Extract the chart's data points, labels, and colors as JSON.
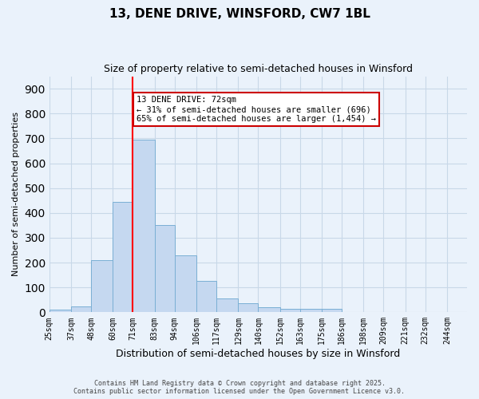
{
  "title": "13, DENE DRIVE, WINSFORD, CW7 1BL",
  "subtitle": "Size of property relative to semi-detached houses in Winsford",
  "xlabel": "Distribution of semi-detached houses by size in Winsford",
  "ylabel": "Number of semi-detached properties",
  "footer_line1": "Contains HM Land Registry data © Crown copyright and database right 2025.",
  "footer_line2": "Contains public sector information licensed under the Open Government Licence v3.0.",
  "annotation_title": "13 DENE DRIVE: 72sqm",
  "annotation_line2": "← 31% of semi-detached houses are smaller (696)",
  "annotation_line3": "65% of semi-detached houses are larger (1,454) →",
  "bin_labels": [
    "25sqm",
    "37sqm",
    "48sqm",
    "60sqm",
    "71sqm",
    "83sqm",
    "94sqm",
    "106sqm",
    "117sqm",
    "129sqm",
    "140sqm",
    "152sqm",
    "163sqm",
    "175sqm",
    "186sqm",
    "198sqm",
    "209sqm",
    "221sqm",
    "232sqm",
    "244sqm"
  ],
  "bin_edges": [
    25,
    37,
    48,
    60,
    71,
    83,
    94,
    106,
    117,
    129,
    140,
    152,
    163,
    175,
    186,
    198,
    209,
    221,
    232,
    244,
    255
  ],
  "bar_values": [
    10,
    25,
    210,
    445,
    695,
    350,
    230,
    125,
    55,
    35,
    20,
    15,
    15,
    15,
    0,
    0,
    0,
    0,
    0,
    0
  ],
  "bar_color": "#c5d8f0",
  "bar_edge_color": "#7aafd4",
  "red_line_x": 71,
  "annotation_box_color": "#ffffff",
  "annotation_box_edge_color": "#cc0000",
  "grid_color": "#c8d8e8",
  "background_color": "#eaf2fb",
  "ylim": [
    0,
    950
  ],
  "yticks": [
    0,
    100,
    200,
    300,
    400,
    500,
    600,
    700,
    800,
    900
  ]
}
